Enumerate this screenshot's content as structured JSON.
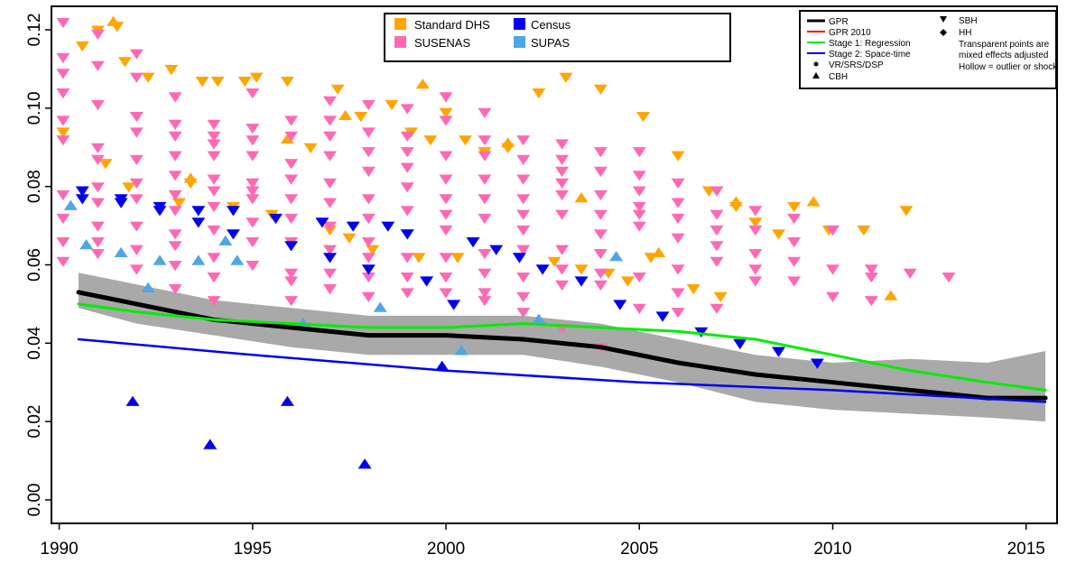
{
  "chart_data": {
    "type": "scatter",
    "xlim": [
      1989.8,
      2015.8
    ],
    "ylim": [
      -0.006,
      0.126
    ],
    "x_ticks": [
      "1990",
      "1995",
      "2000",
      "2005",
      "2010",
      "2015"
    ],
    "y_ticks": [
      "0.00",
      "0.02",
      "0.04",
      "0.06",
      "0.08",
      "0.10",
      "0.12"
    ],
    "legend_sources": [
      {
        "label": "Standard DHS",
        "color": "#FFA500"
      },
      {
        "label": "Census",
        "color": "#0000EE"
      },
      {
        "label": "SUSENAS",
        "color": "#FF69B4"
      },
      {
        "label": "SUPAS",
        "color": "#4FA6E6"
      }
    ],
    "legend_lines": [
      {
        "label": "GPR",
        "color": "#000000"
      },
      {
        "label": "GPR 2010",
        "color": "#FF0000"
      },
      {
        "label": "Stage 1: Regression",
        "color": "#00EE00"
      },
      {
        "label": "Stage 2: Space-time",
        "color": "#0000EE"
      }
    ],
    "legend_markers": [
      {
        "label": "VR/SRS/DSP",
        "symbol": "circle"
      },
      {
        "label": "CBH",
        "symbol": "triangle-up"
      },
      {
        "label": "SBH",
        "symbol": "triangle-down"
      },
      {
        "label": "HH",
        "symbol": "diamond"
      }
    ],
    "legend_notes": [
      "Transparent points are",
      "mixed effects adjusted",
      "Hollow = outlier or shock"
    ],
    "gpr_band": {
      "x": [
        1990.5,
        1992,
        1994,
        1996,
        1998,
        2000,
        2002,
        2004,
        2006,
        2008,
        2010,
        2012,
        2014,
        2015.5
      ],
      "upper": [
        0.058,
        0.055,
        0.051,
        0.049,
        0.047,
        0.047,
        0.047,
        0.045,
        0.041,
        0.037,
        0.035,
        0.036,
        0.035,
        0.038
      ],
      "lower": [
        0.049,
        0.045,
        0.042,
        0.039,
        0.037,
        0.037,
        0.037,
        0.034,
        0.03,
        0.025,
        0.023,
        0.022,
        0.021,
        0.02
      ]
    },
    "series_lines": [
      {
        "name": "GPR",
        "color": "#000000",
        "width": 5,
        "x": [
          1990.5,
          1992,
          1994,
          1996,
          1998,
          2000,
          2002,
          2004,
          2006,
          2008,
          2010,
          2012,
          2014,
          2015.5
        ],
        "y": [
          0.053,
          0.05,
          0.046,
          0.044,
          0.042,
          0.042,
          0.041,
          0.039,
          0.035,
          0.032,
          0.03,
          0.028,
          0.026,
          0.026
        ]
      },
      {
        "name": "Stage 1: Regression",
        "color": "#00EE00",
        "width": 3,
        "x": [
          1990.5,
          1992,
          1994,
          1996,
          1998,
          2000,
          2002,
          2004,
          2006,
          2008,
          2010,
          2012,
          2014,
          2015.5
        ],
        "y": [
          0.05,
          0.048,
          0.046,
          0.045,
          0.044,
          0.044,
          0.045,
          0.044,
          0.043,
          0.041,
          0.037,
          0.033,
          0.03,
          0.028
        ]
      },
      {
        "name": "Stage 2: Space-time",
        "color": "#0000EE",
        "width": 2.5,
        "x": [
          1990.5,
          1995,
          2000,
          2005,
          2010,
          2015.5
        ],
        "y": [
          0.041,
          0.037,
          0.033,
          0.03,
          0.028,
          0.025
        ]
      }
    ],
    "points": {
      "Standard DHS": {
        "color": "#FFA500",
        "marker": "triangle-down",
        "x": [
          1990.1,
          1990.6,
          1991.0,
          1991.2,
          1991.5,
          1991.7,
          1991.8,
          1992.3,
          1992.9,
          1993.1,
          1993.4,
          1993.7,
          1994.1,
          1994.5,
          1994.8,
          1995.1,
          1995.5,
          1995.9,
          1996.5,
          1997.0,
          1997.2,
          1997.5,
          1997.8,
          1998.1,
          1998.6,
          1999.1,
          1999.3,
          1999.6,
          2000.0,
          2000.3,
          2000.5,
          2001.0,
          2001.6,
          2001.9,
          2002.4,
          2002.8,
          2003.1,
          2003.5,
          2004.0,
          2004.2,
          2004.7,
          2005.1,
          2005.3,
          2006.0,
          2006.4,
          2006.8,
          2007.1,
          2007.5,
          2008.0,
          2008.6,
          2009.0,
          2009.9,
          2010.8,
          2011.9
        ],
        "y": [
          0.094,
          0.116,
          0.12,
          0.086,
          0.121,
          0.112,
          0.08,
          0.108,
          0.11,
          0.076,
          0.081,
          0.107,
          0.107,
          0.075,
          0.107,
          0.108,
          0.073,
          0.107,
          0.09,
          0.069,
          0.105,
          0.067,
          0.098,
          0.064,
          0.101,
          0.094,
          0.062,
          0.092,
          0.099,
          0.062,
          0.092,
          0.089,
          0.09,
          0.062,
          0.104,
          0.061,
          0.108,
          0.059,
          0.105,
          0.058,
          0.056,
          0.098,
          0.062,
          0.088,
          0.054,
          0.079,
          0.052,
          0.075,
          0.071,
          0.068,
          0.075,
          0.069,
          0.069,
          0.074
        ]
      },
      "Standard DHS CBH": {
        "color": "#FFA500",
        "marker": "triangle-up",
        "x": [
          1991.4,
          1993.4,
          1995.9,
          1997.4,
          1999.4,
          2001.6,
          2003.5,
          2005.5,
          2007.5,
          2009.5,
          2011.5
        ],
        "y": [
          0.122,
          0.082,
          0.092,
          0.098,
          0.106,
          0.091,
          0.077,
          0.063,
          0.076,
          0.076,
          0.052
        ]
      },
      "SUSENAS": {
        "color": "#FF69B4",
        "marker": "triangle-down",
        "x": [
          1990.1,
          1990.1,
          1990.1,
          1990.1,
          1990.1,
          1990.1,
          1990.1,
          1990.1,
          1990.1,
          1990.1,
          1991.0,
          1991.0,
          1991.0,
          1991.0,
          1991.0,
          1991.0,
          1991.0,
          1991.0,
          1991.0,
          1991.0,
          1992.0,
          1992.0,
          1992.0,
          1992.0,
          1992.0,
          1992.0,
          1992.0,
          1992.0,
          1992.0,
          1992.0,
          1993.0,
          1993.0,
          1993.0,
          1993.0,
          1993.0,
          1993.0,
          1993.0,
          1993.0,
          1993.0,
          1993.0,
          1993.0,
          1994.0,
          1994.0,
          1994.0,
          1994.0,
          1994.0,
          1994.0,
          1994.0,
          1994.0,
          1994.0,
          1994.0,
          1994.0,
          1995.0,
          1995.0,
          1995.0,
          1995.0,
          1995.0,
          1995.0,
          1995.0,
          1995.0,
          1995.0,
          1995.0,
          1996.0,
          1996.0,
          1996.0,
          1996.0,
          1996.0,
          1996.0,
          1996.0,
          1996.0,
          1996.0,
          1996.0,
          1997.0,
          1997.0,
          1997.0,
          1997.0,
          1997.0,
          1997.0,
          1997.0,
          1997.0,
          1997.0,
          1997.0,
          1998.0,
          1998.0,
          1998.0,
          1998.0,
          1998.0,
          1998.0,
          1998.0,
          1998.0,
          1998.0,
          1998.0,
          1999.0,
          1999.0,
          1999.0,
          1999.0,
          1999.0,
          1999.0,
          1999.0,
          1999.0,
          1999.0,
          1999.0,
          2000.0,
          2000.0,
          2000.0,
          2000.0,
          2000.0,
          2000.0,
          2000.0,
          2000.0,
          2000.0,
          2000.0,
          2001.0,
          2001.0,
          2001.0,
          2001.0,
          2001.0,
          2001.0,
          2001.0,
          2001.0,
          2001.0,
          2001.0,
          2002.0,
          2002.0,
          2002.0,
          2002.0,
          2002.0,
          2002.0,
          2002.0,
          2002.0,
          2002.0,
          2002.0,
          2003.0,
          2003.0,
          2003.0,
          2003.0,
          2003.0,
          2003.0,
          2003.0,
          2003.0,
          2003.0,
          2003.0,
          2004.0,
          2004.0,
          2004.0,
          2004.0,
          2004.0,
          2004.0,
          2004.0,
          2004.0,
          2004.0,
          2005.0,
          2005.0,
          2005.0,
          2005.0,
          2005.0,
          2005.0,
          2005.0,
          2005.0,
          2006.0,
          2006.0,
          2006.0,
          2006.0,
          2006.0,
          2006.0,
          2006.0,
          2007.0,
          2007.0,
          2007.0,
          2007.0,
          2007.0,
          2007.0,
          2008.0,
          2008.0,
          2008.0,
          2008.0,
          2008.0,
          2009.0,
          2009.0,
          2009.0,
          2009.0,
          2010.0,
          2010.0,
          2010.0,
          2011.0,
          2011.0,
          2011.0,
          2012.0,
          2013.0
        ],
        "y": [
          0.122,
          0.113,
          0.109,
          0.104,
          0.097,
          0.092,
          0.078,
          0.072,
          0.066,
          0.061,
          0.119,
          0.111,
          0.101,
          0.09,
          0.087,
          0.08,
          0.076,
          0.07,
          0.066,
          0.063,
          0.114,
          0.108,
          0.098,
          0.094,
          0.087,
          0.081,
          0.077,
          0.07,
          0.064,
          0.059,
          0.103,
          0.096,
          0.093,
          0.088,
          0.083,
          0.078,
          0.074,
          0.068,
          0.065,
          0.06,
          0.054,
          0.096,
          0.093,
          0.091,
          0.088,
          0.082,
          0.079,
          0.075,
          0.069,
          0.062,
          0.057,
          0.051,
          0.104,
          0.095,
          0.092,
          0.088,
          0.081,
          0.079,
          0.077,
          0.071,
          0.066,
          0.06,
          0.097,
          0.093,
          0.086,
          0.082,
          0.077,
          0.072,
          0.066,
          0.058,
          0.056,
          0.051,
          0.102,
          0.097,
          0.093,
          0.088,
          0.081,
          0.076,
          0.07,
          0.064,
          0.058,
          0.054,
          0.101,
          0.094,
          0.089,
          0.084,
          0.077,
          0.072,
          0.066,
          0.062,
          0.057,
          0.052,
          0.1,
          0.093,
          0.089,
          0.085,
          0.08,
          0.074,
          0.068,
          0.062,
          0.057,
          0.053,
          0.103,
          0.097,
          0.088,
          0.082,
          0.077,
          0.073,
          0.069,
          0.062,
          0.057,
          0.053,
          0.099,
          0.092,
          0.088,
          0.082,
          0.077,
          0.072,
          0.063,
          0.058,
          0.053,
          0.051,
          0.092,
          0.087,
          0.082,
          0.077,
          0.073,
          0.069,
          0.064,
          0.057,
          0.052,
          0.048,
          0.091,
          0.087,
          0.084,
          0.081,
          0.078,
          0.073,
          0.064,
          0.059,
          0.055,
          0.044,
          0.089,
          0.084,
          0.078,
          0.073,
          0.068,
          0.063,
          0.058,
          0.055,
          0.039,
          0.089,
          0.083,
          0.079,
          0.075,
          0.073,
          0.07,
          0.057,
          0.049,
          0.081,
          0.076,
          0.072,
          0.067,
          0.059,
          0.053,
          0.048,
          0.079,
          0.073,
          0.069,
          0.065,
          0.061,
          0.049,
          0.074,
          0.069,
          0.063,
          0.059,
          0.056,
          0.072,
          0.066,
          0.061,
          0.056,
          0.069,
          0.059,
          0.052,
          0.059,
          0.057,
          0.051,
          0.058,
          0.057
        ]
      },
      "Census": {
        "color": "#0000EE",
        "marker": "triangle-down",
        "x": [
          1990.6,
          1990.6,
          1991.6,
          1991.6,
          1992.6,
          1992.6,
          1993.6,
          1993.6,
          1994.5,
          1994.5,
          1995.6,
          1996.0,
          1996.8,
          1997.0,
          1997.6,
          1998.0,
          1998.5,
          1999.0,
          1999.5,
          2000.2,
          2000.7,
          2001.3,
          2001.9,
          2002.5,
          2003.5,
          2004.5,
          2005.6,
          2006.6,
          2007.6,
          2008.6,
          2009.6
        ],
        "y": [
          0.079,
          0.077,
          0.077,
          0.076,
          0.075,
          0.074,
          0.074,
          0.071,
          0.074,
          0.068,
          0.072,
          0.065,
          0.071,
          0.062,
          0.07,
          0.059,
          0.07,
          0.068,
          0.056,
          0.05,
          0.066,
          0.064,
          0.062,
          0.059,
          0.056,
          0.05,
          0.047,
          0.043,
          0.04,
          0.038,
          0.035
        ]
      },
      "Census CBH": {
        "color": "#0000EE",
        "marker": "triangle-up",
        "x": [
          1991.9,
          1993.9,
          1995.9,
          1997.9,
          1999.9
        ],
        "y": [
          0.025,
          0.014,
          0.025,
          0.009,
          0.034
        ]
      },
      "SUPAS": {
        "color": "#4FA6E6",
        "marker": "triangle-up",
        "x": [
          1990.3,
          1990.7,
          1991.6,
          1992.3,
          1992.6,
          1993.6,
          1994.3,
          1994.6,
          1996.3,
          1998.3,
          2000.4,
          2002.4,
          2004.4
        ],
        "y": [
          0.075,
          0.065,
          0.063,
          0.054,
          0.061,
          0.061,
          0.066,
          0.061,
          0.045,
          0.049,
          0.038,
          0.046,
          0.062
        ]
      }
    }
  }
}
